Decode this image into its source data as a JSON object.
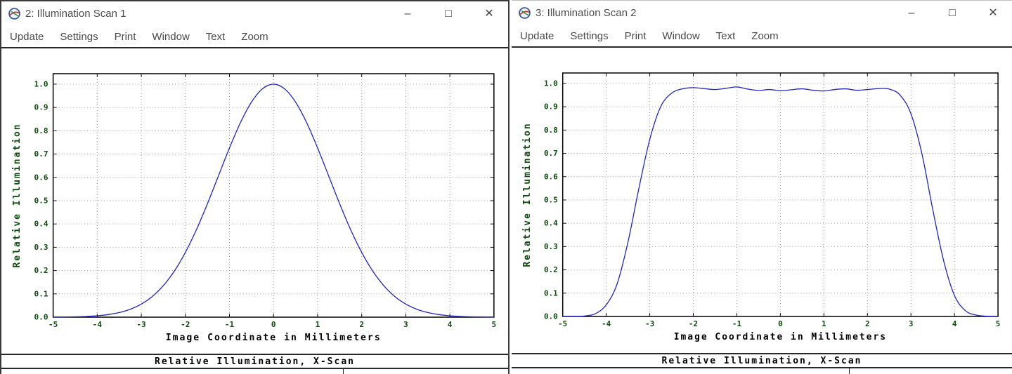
{
  "windows": [
    {
      "title": "2: Illumination Scan 1",
      "menu": [
        "Update",
        "Settings",
        "Print",
        "Window",
        "Text",
        "Zoom"
      ],
      "caption": "Relative Illumination, X-Scan"
    },
    {
      "title": "3: Illumination Scan 2",
      "menu": [
        "Update",
        "Settings",
        "Print",
        "Window",
        "Text",
        "Zoom"
      ],
      "caption": "Relative Illumination, X-Scan"
    }
  ],
  "window_controls": {
    "minimize": "–",
    "maximize": "□",
    "close": "✕"
  },
  "chart_data": [
    {
      "type": "line",
      "title": "Relative Illumination, X-Scan",
      "xlabel": "Image Coordinate in Millimeters",
      "ylabel": "Relative Illumination",
      "xlim": [
        -5,
        5
      ],
      "ylim": [
        0,
        1.045
      ],
      "xticks": [
        -5,
        -4,
        -3,
        -2,
        -1,
        0,
        1,
        2,
        3,
        4,
        5
      ],
      "yticks": [
        0,
        0.1,
        0.2,
        0.3,
        0.4,
        0.5,
        0.6,
        0.7,
        0.8,
        0.9,
        1.0
      ],
      "grid": "dotted",
      "grid_color": "#9a9a9a",
      "tick_color": "#0e4d0e",
      "ylabel_color": "#0e4d0e",
      "xlabel_color": "#000000",
      "x": [
        -5,
        -4.75,
        -4.5,
        -4.25,
        -4,
        -3.75,
        -3.5,
        -3.25,
        -3,
        -2.75,
        -2.5,
        -2.25,
        -2,
        -1.75,
        -1.5,
        -1.25,
        -1,
        -0.75,
        -0.5,
        -0.25,
        0,
        0.25,
        0.5,
        0.75,
        1,
        1.25,
        1.5,
        1.75,
        2,
        2.25,
        2.5,
        2.75,
        3,
        3.25,
        3.5,
        3.75,
        4,
        4.25,
        4.5,
        4.75,
        5
      ],
      "series": [
        {
          "name": "Relative Illumination",
          "color": "#2323c8",
          "values": [
            0.0003,
            0.0007,
            0.0015,
            0.0031,
            0.006,
            0.0111,
            0.0198,
            0.034,
            0.0561,
            0.0889,
            0.1353,
            0.1979,
            0.278,
            0.3753,
            0.4868,
            0.6065,
            0.7261,
            0.8353,
            0.9231,
            0.9802,
            1.0,
            0.9802,
            0.9231,
            0.8353,
            0.7261,
            0.6065,
            0.4868,
            0.3753,
            0.278,
            0.1979,
            0.1353,
            0.0889,
            0.0561,
            0.034,
            0.0198,
            0.0111,
            0.006,
            0.0031,
            0.0015,
            0.0007,
            0.0003
          ]
        }
      ]
    },
    {
      "type": "line",
      "title": "Relative Illumination, X-Scan",
      "xlabel": "Image Coordinate in Millimeters",
      "ylabel": "Relative Illumination",
      "xlim": [
        -5,
        5
      ],
      "ylim": [
        0,
        1.045
      ],
      "xticks": [
        -5,
        -4,
        -3,
        -2,
        -1,
        0,
        1,
        2,
        3,
        4,
        5
      ],
      "yticks": [
        0,
        0.1,
        0.2,
        0.3,
        0.4,
        0.5,
        0.6,
        0.7,
        0.8,
        0.9,
        1.0
      ],
      "grid": "dotted",
      "grid_color": "#9a9a9a",
      "tick_color": "#0e4d0e",
      "ylabel_color": "#0e4d0e",
      "xlabel_color": "#000000",
      "x": [
        -5,
        -4.75,
        -4.5,
        -4.25,
        -4,
        -3.75,
        -3.5,
        -3.25,
        -3,
        -2.75,
        -2.5,
        -2.25,
        -2,
        -1.75,
        -1.5,
        -1.25,
        -1,
        -0.75,
        -0.5,
        -0.25,
        0,
        0.25,
        0.5,
        0.75,
        1,
        1.25,
        1.5,
        1.75,
        2,
        2.25,
        2.5,
        2.75,
        3,
        3.25,
        3.5,
        3.75,
        4,
        4.25,
        4.5,
        4.75,
        5
      ],
      "series": [
        {
          "name": "Relative Illumination",
          "color": "#2323c8",
          "values": [
            0.0,
            0.0005,
            0.002,
            0.012,
            0.05,
            0.14,
            0.32,
            0.55,
            0.76,
            0.9,
            0.958,
            0.977,
            0.982,
            0.978,
            0.974,
            0.979,
            0.985,
            0.976,
            0.97,
            0.974,
            0.969,
            0.973,
            0.977,
            0.971,
            0.968,
            0.974,
            0.977,
            0.971,
            0.974,
            0.978,
            0.976,
            0.95,
            0.87,
            0.7,
            0.46,
            0.24,
            0.09,
            0.025,
            0.006,
            0.001,
            0.0
          ]
        }
      ]
    }
  ]
}
